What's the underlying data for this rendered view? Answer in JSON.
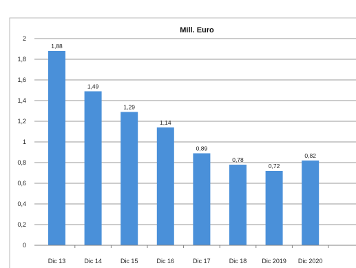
{
  "chart_data": {
    "type": "bar",
    "title": "Mill. Euro",
    "categories": [
      "Dic 13",
      "Dic 14",
      "Dic 15",
      "Dic 16",
      "Dic 17",
      "Dic 18",
      "Dic 2019",
      "Dic 2020"
    ],
    "values": [
      1.88,
      1.49,
      1.29,
      1.14,
      0.89,
      0.78,
      0.72,
      0.82
    ],
    "data_labels": [
      "1,88",
      "1,49",
      "1,29",
      "1,14",
      "0,89",
      "0,78",
      "0,72",
      "0,82"
    ],
    "yticks": [
      0,
      0.2,
      0.4,
      0.6,
      0.8,
      1,
      1.2,
      1.4,
      1.6,
      1.8,
      2
    ],
    "ytick_labels": [
      "0",
      "0,2",
      "0,4",
      "0,6",
      "0,8",
      "1",
      "1,2",
      "1,4",
      "1,6",
      "1,8",
      "2"
    ],
    "ylim": [
      0,
      2
    ],
    "xlabel": "",
    "ylabel": "",
    "grid": true,
    "legend": "none",
    "bar_color": "#4a90d9",
    "gridline_color": "#9a9a9a",
    "axis_color": "#808080",
    "frame_color": "#b8b8b8"
  }
}
